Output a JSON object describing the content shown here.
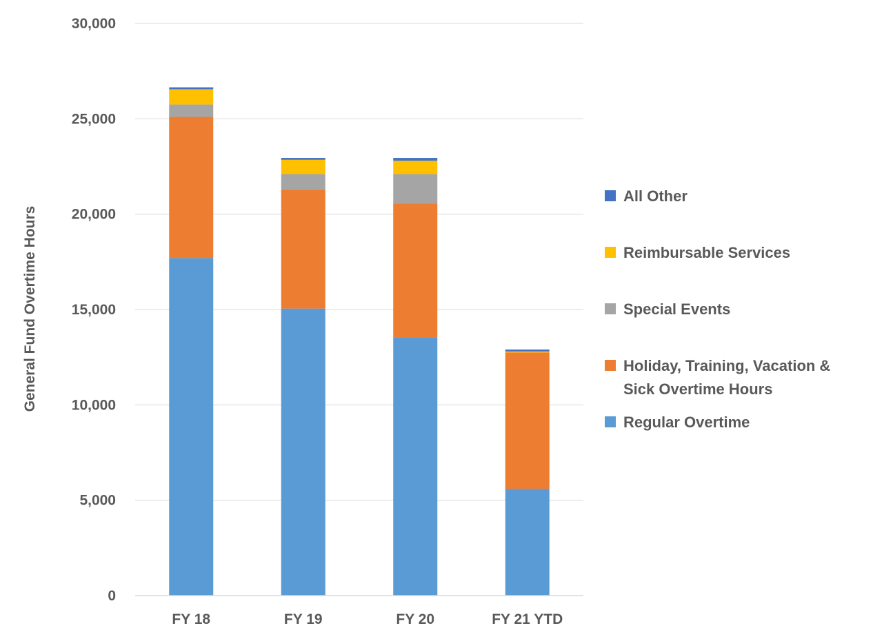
{
  "chart_data": {
    "type": "bar",
    "stacked": true,
    "title": "",
    "xlabel": "",
    "ylabel": "General Fund Overtime Hours",
    "ylim": [
      0,
      30000
    ],
    "yticks": [
      0,
      5000,
      10000,
      15000,
      20000,
      25000,
      30000
    ],
    "ytick_labels": [
      "0",
      "5,000",
      "10,000",
      "15,000",
      "20,000",
      "25,000",
      "30,000"
    ],
    "grid": true,
    "legend_position": "right",
    "categories": [
      "FY 18",
      "FY 19",
      "FY 20",
      "FY 21 YTD"
    ],
    "series": [
      {
        "name": "Regular Overtime",
        "color": "#5B9BD5",
        "values": [
          17700,
          15050,
          13550,
          5600
        ]
      },
      {
        "name": "Holiday, Training, Vacation & Sick Overtime Hours",
        "color": "#ED7D31",
        "values": [
          7400,
          6250,
          7000,
          7150
        ]
      },
      {
        "name": "Special Events",
        "color": "#A5A5A5",
        "values": [
          650,
          800,
          1550,
          0
        ]
      },
      {
        "name": "Reimbursable Services",
        "color": "#FFC000",
        "values": [
          800,
          750,
          700,
          50
        ]
      },
      {
        "name": "All Other",
        "color": "#4472C4",
        "values": [
          100,
          100,
          150,
          100
        ]
      }
    ],
    "legend_order": [
      "All Other",
      "Reimbursable Services",
      "Special Events",
      "Holiday, Training, Vacation & Sick Overtime Hours",
      "Regular Overtime"
    ],
    "legend_lines": {
      "All Other": [
        "All Other"
      ],
      "Reimbursable Services": [
        "Reimbursable Services"
      ],
      "Special Events": [
        "Special Events"
      ],
      "Holiday, Training, Vacation & Sick Overtime Hours": [
        "Holiday, Training, Vacation &",
        "Sick Overtime Hours"
      ],
      "Regular Overtime": [
        "Regular Overtime"
      ]
    }
  }
}
